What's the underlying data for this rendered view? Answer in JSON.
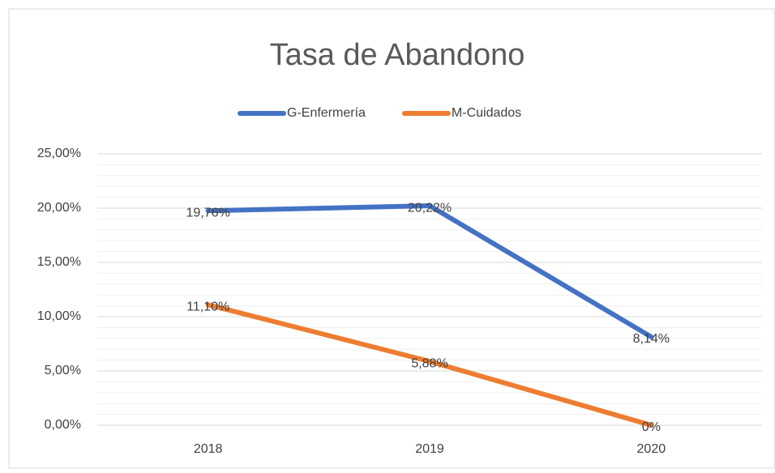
{
  "chart_data": {
    "type": "line",
    "title": "Tasa de Abandono",
    "categories": [
      "2018",
      "2019",
      "2020"
    ],
    "series": [
      {
        "name": "G-Enfermería",
        "color": "#4472c4",
        "values": [
          19.76,
          20.22,
          8.14
        ],
        "value_labels": [
          "19,76%",
          "20,22%",
          "8,14%"
        ]
      },
      {
        "name": "M-Cuidados",
        "color": "#ed7d31",
        "values": [
          11.1,
          5.88,
          0
        ],
        "value_labels": [
          "11,10%",
          "5,88%",
          "0%"
        ]
      }
    ],
    "ylim": [
      0,
      25
    ],
    "yticks": [
      {
        "value": 0,
        "label": "0,00%"
      },
      {
        "value": 5,
        "label": "5,00%"
      },
      {
        "value": 10,
        "label": "10,00%"
      },
      {
        "value": 15,
        "label": "15,00%"
      },
      {
        "value": 20,
        "label": "20,00%"
      },
      {
        "value": 25,
        "label": "25,00%"
      }
    ],
    "yminorticks": [
      1,
      2,
      3,
      4,
      6,
      7,
      8,
      9,
      11,
      12,
      13,
      14,
      16,
      17,
      18,
      19,
      21,
      22,
      23,
      24
    ],
    "grid": true,
    "legend": "top"
  }
}
